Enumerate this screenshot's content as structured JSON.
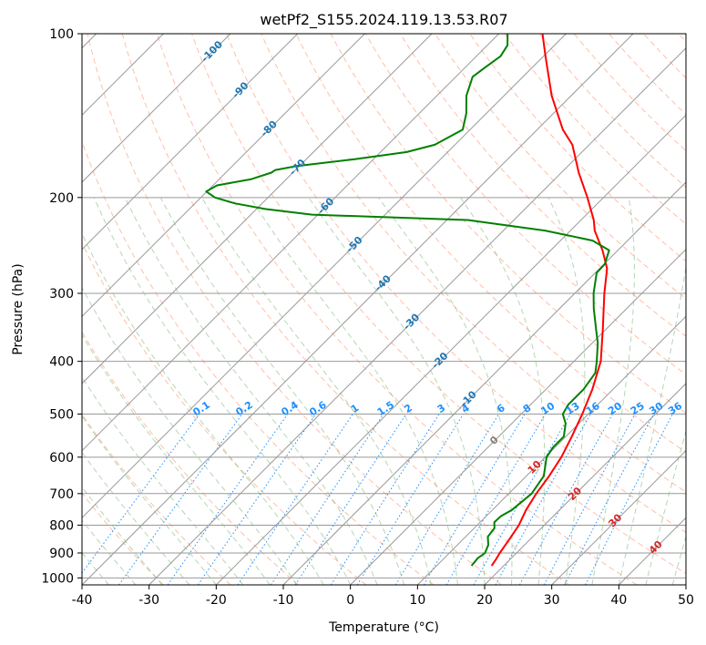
{
  "chart_data": {
    "type": "skew-t",
    "title": "wetPf2_S155.2024.119.13.53.R07",
    "xlabel": "Temperature (°C)",
    "ylabel": "Pressure (hPa)",
    "xlim": [
      -40,
      50
    ],
    "ylim": [
      1030,
      100
    ],
    "y_scale": "log",
    "grid": true,
    "x_ticks": [
      "-40",
      "-30",
      "-20",
      "-10",
      "0",
      "10",
      "20",
      "30",
      "40",
      "50"
    ],
    "y_ticks": [
      "100",
      "200",
      "300",
      "400",
      "500",
      "600",
      "700",
      "800",
      "900",
      "1000"
    ],
    "series": [
      {
        "kind": "temperature",
        "color": "#ff0000",
        "points": [
          [
            950,
            18.2
          ],
          [
            925,
            17.9
          ],
          [
            900,
            17.5
          ],
          [
            850,
            16.9
          ],
          [
            800,
            16.2
          ],
          [
            750,
            15.0
          ],
          [
            700,
            14.1
          ],
          [
            650,
            13.4
          ],
          [
            600,
            12.4
          ],
          [
            550,
            10.9
          ],
          [
            500,
            9.1
          ],
          [
            450,
            6.9
          ],
          [
            400,
            4.0
          ],
          [
            350,
            -0.4
          ],
          [
            300,
            -5.6
          ],
          [
            270,
            -8.9
          ],
          [
            250,
            -12.3
          ],
          [
            230,
            -16.4
          ],
          [
            220,
            -18.1
          ],
          [
            200,
            -22.4
          ],
          [
            180,
            -27.4
          ],
          [
            160,
            -32.5
          ],
          [
            150,
            -36.2
          ],
          [
            130,
            -42.9
          ],
          [
            110,
            -49.7
          ],
          [
            100,
            -53.5
          ]
        ]
      },
      {
        "kind": "dewpoint",
        "color": "#008000",
        "points": [
          [
            950,
            15.2
          ],
          [
            920,
            15.0
          ],
          [
            900,
            15.3
          ],
          [
            870,
            14.6
          ],
          [
            840,
            13.3
          ],
          [
            810,
            13.0
          ],
          [
            790,
            12.1
          ],
          [
            770,
            12.2
          ],
          [
            750,
            12.9
          ],
          [
            700,
            13.4
          ],
          [
            650,
            12.6
          ],
          [
            600,
            10.2
          ],
          [
            575,
            9.7
          ],
          [
            550,
            9.7
          ],
          [
            520,
            8.0
          ],
          [
            500,
            6.2
          ],
          [
            480,
            5.6
          ],
          [
            450,
            5.6
          ],
          [
            420,
            4.9
          ],
          [
            400,
            3.4
          ],
          [
            370,
            0.8
          ],
          [
            350,
            -1.4
          ],
          [
            320,
            -4.9
          ],
          [
            300,
            -7.2
          ],
          [
            275,
            -9.8
          ],
          [
            265,
            -9.9
          ],
          [
            250,
            -11.3
          ],
          [
            240,
            -15.2
          ],
          [
            230,
            -23.8
          ],
          [
            220,
            -36.9
          ],
          [
            215,
            -60.9
          ],
          [
            210,
            -68.6
          ],
          [
            205,
            -74.1
          ],
          [
            200,
            -77.9
          ],
          [
            195,
            -80.1
          ],
          [
            190,
            -79.4
          ],
          [
            185,
            -75.2
          ],
          [
            180,
            -73.2
          ],
          [
            178,
            -73.0
          ],
          [
            175,
            -70.4
          ],
          [
            170,
            -62.8
          ],
          [
            165,
            -56.1
          ],
          [
            160,
            -53.0
          ],
          [
            150,
            -51.1
          ],
          [
            140,
            -53.0
          ],
          [
            130,
            -55.6
          ],
          [
            120,
            -57.5
          ],
          [
            115,
            -57.0
          ],
          [
            110,
            -56.4
          ],
          [
            105,
            -57.0
          ],
          [
            100,
            -58.7
          ]
        ]
      }
    ],
    "mixing_ratio_labels": [
      "0.1",
      "0.2",
      "0.4",
      "0.6",
      "1",
      "1.5",
      "2",
      "3",
      "4",
      "6",
      "8",
      "10",
      "13",
      "16",
      "20",
      "25",
      "30",
      "36"
    ],
    "dry_adiabat_labels": [
      "-100",
      "-90",
      "-80",
      "-70",
      "-60",
      "-50",
      "-40",
      "-30",
      "-20",
      "-10",
      "0",
      "10",
      "20",
      "30",
      "40"
    ],
    "colors": {
      "temperature": "#ff0000",
      "dewpoint": "#008000",
      "mixing_ratio": "#1e90ff",
      "dry_adiabat": "#ff7f50",
      "moist_adiabat": "#6aaf6a",
      "isotherm_grid": "#999999",
      "adiabat_label": "#1f77b4",
      "warm_label": "#d62728",
      "zero_label": "#808080"
    }
  }
}
